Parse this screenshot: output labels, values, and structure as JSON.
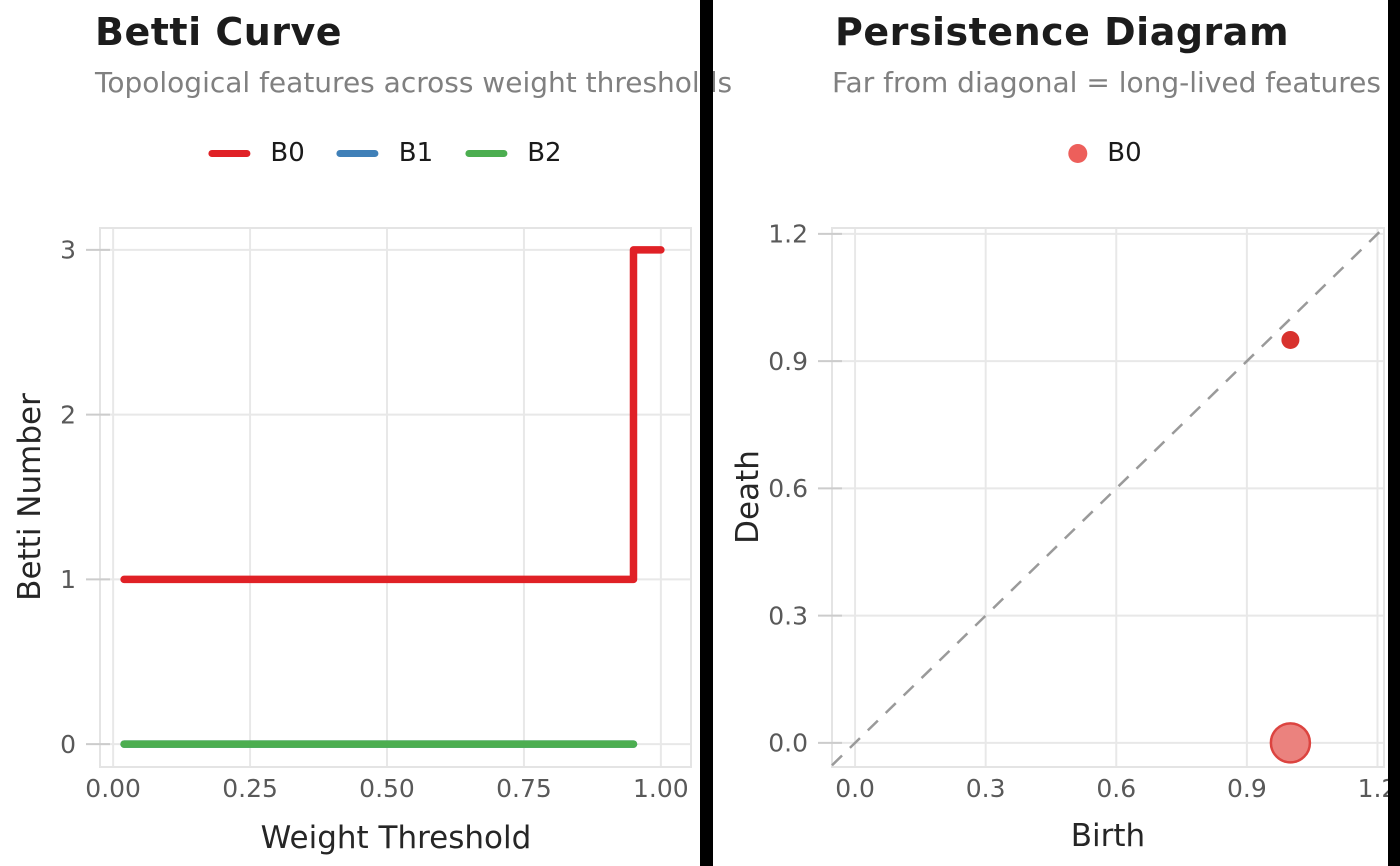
{
  "figure": {
    "background": "#ffffff",
    "divider_color": "#000000"
  },
  "colors": {
    "grid": "#e8e8e8",
    "plot_border": "#e4e4e4",
    "tick_mark": "#cccccc",
    "tick_text": "#595959",
    "axis_text": "#262626",
    "title_text": "#1c1c1c",
    "subtitle_text": "#808080"
  },
  "chart_data": [
    {
      "type": "line",
      "title": "Betti Curve",
      "subtitle": "Topological features across weight thresholds",
      "xlabel": "Weight Threshold",
      "ylabel": "Betti Number",
      "xlim": [
        -0.024,
        1.055
      ],
      "ylim": [
        -0.139,
        3.133
      ],
      "xticks": [
        0,
        0.25,
        0.5,
        0.75,
        1.0
      ],
      "xtick_labels": [
        "0.00",
        "0.25",
        "0.50",
        "0.75",
        "1.00"
      ],
      "yticks": [
        0,
        1,
        2,
        3
      ],
      "ytick_labels": [
        "0",
        "1",
        "2",
        "3"
      ],
      "grid": true,
      "legend_position": "top-center",
      "series": [
        {
          "name": "B0",
          "color": "#e02126",
          "line": [
            [
              0.02,
              1
            ],
            [
              0.95,
              1
            ],
            [
              0.95,
              3
            ],
            [
              1.0,
              3
            ]
          ]
        },
        {
          "name": "B1",
          "color": "#4080b8",
          "line": [
            [
              0.02,
              0
            ],
            [
              0.95,
              0
            ]
          ]
        },
        {
          "name": "B2",
          "color": "#4cae50",
          "line": [
            [
              0.02,
              0
            ],
            [
              0.95,
              0
            ]
          ]
        }
      ]
    },
    {
      "type": "scatter",
      "title": "Persistence Diagram",
      "subtitle": "Far from diagonal = long-lived features",
      "xlabel": "Birth",
      "ylabel": "Death",
      "xlim": [
        -0.053,
        1.215
      ],
      "ylim": [
        -0.057,
        1.214
      ],
      "xticks": [
        0,
        0.3,
        0.6,
        0.9,
        1.2
      ],
      "xtick_labels": [
        "0.0",
        "0.3",
        "0.6",
        "0.9",
        "1.2"
      ],
      "yticks": [
        0,
        0.3,
        0.6,
        0.9,
        1.2
      ],
      "ytick_labels": [
        "0.0",
        "0.3",
        "0.6",
        "0.9",
        "1.2"
      ],
      "grid": true,
      "legend_position": "top-center",
      "diagonal": {
        "style": "dashed",
        "color": "#9a9a9a"
      },
      "series": [
        {
          "name": "B0",
          "legend_color": "#ed5f5b",
          "points": [
            {
              "birth": 1.0,
              "death": 0.95,
              "radius": 9,
              "fill": "#d8322e"
            },
            {
              "birth": 1.0,
              "death": 0.0,
              "radius": 19.5,
              "fill": "#eb827e",
              "stroke": "#dc4440"
            }
          ]
        }
      ]
    }
  ]
}
